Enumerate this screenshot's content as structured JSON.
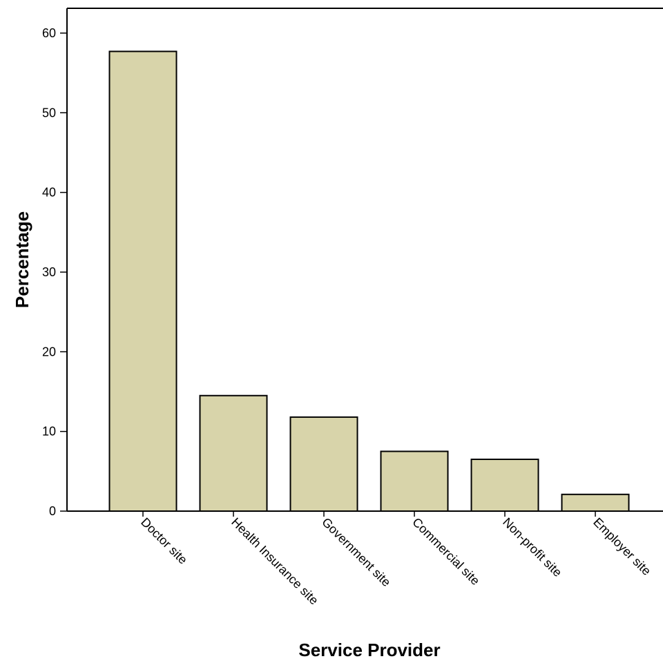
{
  "chart_data": {
    "type": "bar",
    "title": "",
    "xlabel": "Service Provider",
    "ylabel": "Percentage",
    "categories": [
      "Doctor site",
      "Health Insurance site",
      "Government site",
      "Commercial site",
      "Non-profit site",
      "Employer site"
    ],
    "values": [
      57.7,
      14.5,
      11.8,
      7.5,
      6.5,
      2.1
    ],
    "ylim": [
      0,
      63
    ],
    "yticks": [
      "0",
      "10",
      "20",
      "30",
      "40",
      "50",
      "60"
    ],
    "grid": false,
    "legend": "none",
    "colors": {
      "bar_fill": "#d8d4aa",
      "bar_stroke": "#000000",
      "axis": "#000000"
    }
  }
}
